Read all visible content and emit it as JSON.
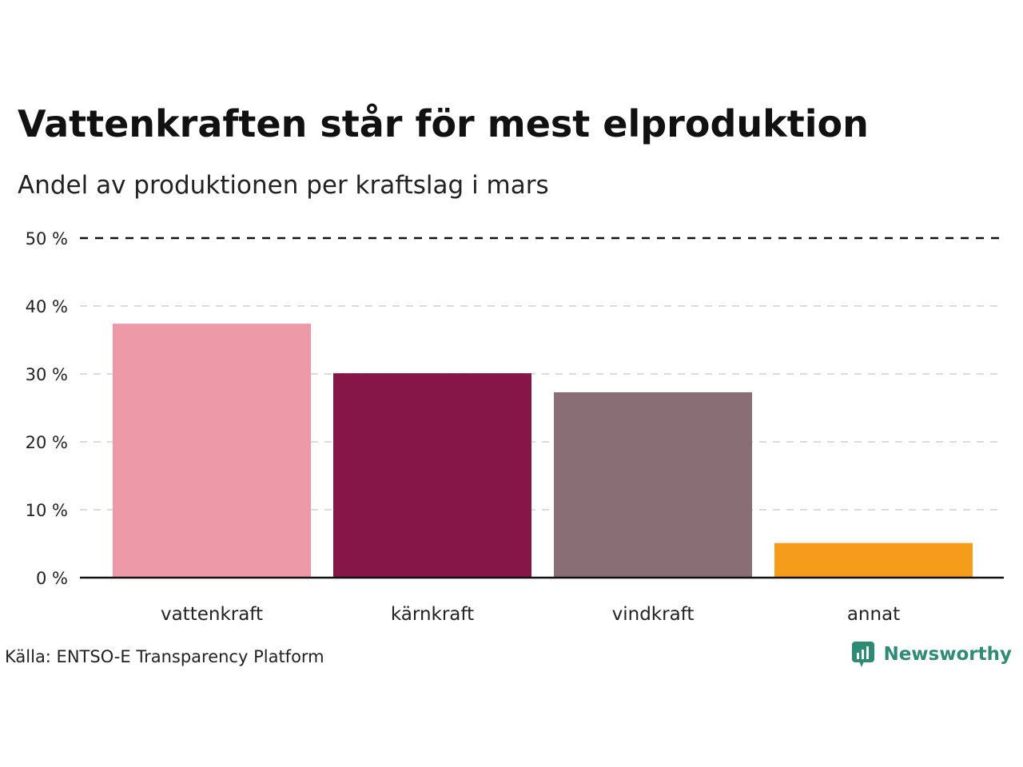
{
  "title": "Vattenkraften står för mest elproduktion",
  "subtitle": "Andel av produktionen per kraftslag i mars",
  "source": "Källa: ENTSO-E Transparency Platform",
  "brand": {
    "name": "Newsworthy",
    "icon": "newsworthy-logo-icon",
    "color": "#2f8a76"
  },
  "chart_data": {
    "type": "bar",
    "categories": [
      "vattenkraft",
      "kärnkraft",
      "vindkraft",
      "annat"
    ],
    "values": [
      37.4,
      30.1,
      27.3,
      5.1
    ],
    "colors": [
      "#ee99a8",
      "#861647",
      "#8a6e75",
      "#f59c1a"
    ],
    "ylim": [
      0,
      50
    ],
    "yticks": [
      0,
      10,
      20,
      30,
      40,
      50
    ],
    "ytick_labels": [
      "0 %",
      "10 %",
      "20 %",
      "30 %",
      "40 %",
      "50 %"
    ],
    "grid": true,
    "reference_line": 50,
    "xlabel": "",
    "ylabel": ""
  }
}
